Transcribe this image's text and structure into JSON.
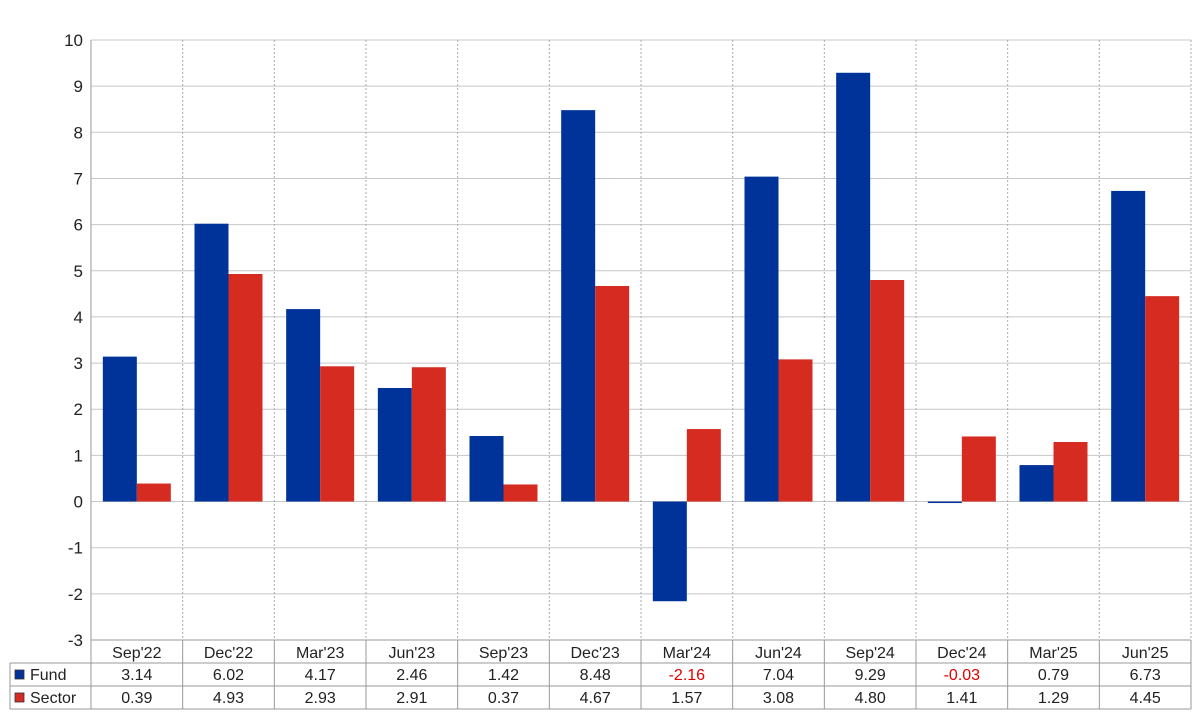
{
  "chart_data": {
    "type": "bar",
    "categories": [
      "Sep'22",
      "Dec'22",
      "Mar'23",
      "Jun'23",
      "Sep'23",
      "Dec'23",
      "Mar'24",
      "Jun'24",
      "Sep'24",
      "Dec'24",
      "Mar'25",
      "Jun'25"
    ],
    "series": [
      {
        "name": "Fund",
        "color": "#003399",
        "values": [
          3.14,
          6.02,
          4.17,
          2.46,
          1.42,
          8.48,
          -2.16,
          7.04,
          9.29,
          -0.03,
          0.79,
          6.73
        ],
        "labels": [
          "3.14",
          "6.02",
          "4.17",
          "2.46",
          "1.42",
          "8.48",
          "-2.16",
          "7.04",
          "9.29",
          "-0.03",
          "0.79",
          "6.73"
        ]
      },
      {
        "name": "Sector",
        "color": "#d62b20",
        "values": [
          0.39,
          4.93,
          2.93,
          2.91,
          0.37,
          4.67,
          1.57,
          3.08,
          4.8,
          1.41,
          1.29,
          4.45
        ],
        "labels": [
          "0.39",
          "4.93",
          "2.93",
          "2.91",
          "0.37",
          "4.67",
          "1.57",
          "3.08",
          "4.80",
          "1.41",
          "1.29",
          "4.45"
        ]
      }
    ],
    "ylim": [
      -3,
      10
    ],
    "yticks": [
      "10",
      "9",
      "8",
      "7",
      "6",
      "5",
      "4",
      "3",
      "2",
      "1",
      "0",
      "-1",
      "-2",
      "-3"
    ],
    "grid": true,
    "legend": "data-table",
    "negative_label_color": "#e00000",
    "title": "",
    "xlabel": "",
    "ylabel": ""
  }
}
